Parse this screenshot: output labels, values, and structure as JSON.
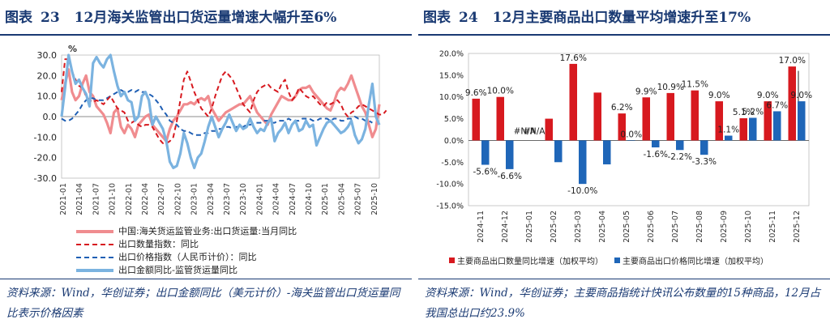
{
  "left": {
    "title_prefix": "图表",
    "title_number": "23",
    "title_text": "12月海关监管出口货运量增速大幅升至6%",
    "source": "资料来源：Wind，华创证券；出口金额同比（美元计价）-海关监管出口货运量同比表示价格因素",
    "colors": {
      "s1": "#f08c8f",
      "s2": "#d7191f",
      "s3": "#1f5fb4",
      "s4": "#7bb3e0"
    }
  },
  "right": {
    "title_prefix": "图表",
    "title_number": "24",
    "title_text": "12月主要商品出口数量平均增速升至17%",
    "source": "资料来源：Wind，华创证券；主要商品指统计快讯公布数量的15种商品，12月占我国总出口约23.9%",
    "colors": {
      "qty": "#d7191f",
      "price": "#1f66b8"
    }
  },
  "chart_data": [
    {
      "type": "line",
      "ylim": [
        -30,
        30
      ],
      "yticks": [
        "30.0",
        "20.0",
        "10.0",
        "0.0",
        "-10.0",
        "-20.0",
        "-30.0"
      ],
      "xtick_labels": [
        "2021-01",
        "2021-04",
        "2021-07",
        "2021-10",
        "2022-01",
        "2022-04",
        "2022-07",
        "2022-10",
        "2023-01",
        "2023-04",
        "2023-07",
        "2023-10",
        "2024-01",
        "2024-04",
        "2024-07",
        "2024-10",
        "2025-01",
        "2025-04",
        "2025-07",
        "2025-10"
      ],
      "annotation": "%",
      "series": [
        {
          "name": "中国:海关货运监管业务:出口货运量:当月同比",
          "values": [
            8,
            16,
            23,
            12,
            8,
            10,
            16,
            20,
            12,
            10,
            5,
            3,
            1,
            -3,
            -8,
            2,
            4,
            -5,
            -8,
            -4,
            -6,
            -10,
            -4,
            -2,
            0,
            1,
            -4,
            -6,
            -8,
            -10,
            -12,
            -6,
            -2,
            0,
            3,
            6,
            6,
            7,
            6,
            8,
            9,
            8,
            10,
            4,
            1,
            -2,
            0,
            2,
            3,
            4,
            5,
            6,
            6,
            8,
            10,
            6,
            2,
            0,
            -2,
            -4,
            1,
            4,
            7,
            10,
            9,
            8,
            8,
            10,
            13,
            14,
            14,
            15,
            12,
            10,
            8,
            6,
            4,
            3,
            7,
            12,
            14,
            13,
            16,
            20,
            15,
            10,
            5,
            2,
            -4,
            -10,
            -6,
            6
          ]
        },
        {
          "name": "出口数量指数：同比",
          "values": [
            12,
            28,
            28,
            22,
            18,
            15,
            14,
            10,
            8,
            7,
            8,
            7,
            6,
            8,
            10,
            7,
            4,
            3,
            2,
            -2,
            -3,
            -2,
            -4,
            -5,
            -4,
            -4,
            -5,
            -8,
            -11,
            -13,
            -13,
            -12,
            -10,
            -2,
            8,
            18,
            22,
            17,
            12,
            8,
            4,
            2,
            0,
            4,
            10,
            15,
            20,
            22,
            20,
            18,
            14,
            10,
            6,
            4,
            2,
            8,
            12,
            14,
            15,
            16,
            14,
            13,
            12,
            16,
            18,
            12,
            8,
            10,
            14,
            12,
            10,
            9,
            10,
            8,
            6,
            5,
            7,
            6,
            7,
            8,
            6,
            2,
            0,
            2,
            3,
            5,
            6,
            5,
            4,
            3,
            2,
            1,
            1,
            3
          ]
        },
        {
          "name": "出口价格指数（人民币计价）：同比",
          "values": [
            -1,
            -2,
            -2,
            -1,
            1,
            3,
            6,
            8,
            9,
            9,
            8,
            8,
            8,
            9,
            10,
            11,
            12,
            13,
            12,
            12,
            13,
            12,
            13,
            12,
            12,
            11,
            10,
            8,
            6,
            3,
            1,
            -2,
            -3,
            -4,
            -6,
            -7,
            -7,
            -8,
            -9,
            -9,
            -9,
            -8,
            -8,
            -7,
            -7,
            -6,
            -6,
            -5,
            -5,
            -6,
            -5,
            -5,
            -5,
            -4,
            -4,
            -3,
            -3,
            -3,
            -2,
            -2,
            -3,
            -3,
            -2,
            -2,
            -2,
            -1,
            -2,
            -2,
            -2,
            -1,
            -1,
            -1,
            -2,
            -2,
            -1,
            -1,
            -1,
            -2,
            -1,
            -1,
            -2,
            -2,
            -1,
            -1,
            0,
            -1,
            -1,
            -2,
            -2,
            -3
          ]
        },
        {
          "name": "出口金额同比-监管货运量同比",
          "values": [
            0,
            14,
            30,
            22,
            16,
            18,
            14,
            11,
            5,
            26,
            29,
            26,
            24,
            28,
            30,
            22,
            15,
            10,
            12,
            8,
            7,
            -2,
            0,
            10,
            12,
            8,
            -4,
            0,
            -3,
            -6,
            -12,
            -22,
            -25,
            -24,
            -18,
            -8,
            -13,
            -20,
            -25,
            -20,
            -18,
            -12,
            -5,
            0,
            -5,
            -10,
            -6,
            -3,
            1,
            -3,
            -7,
            -4,
            -6,
            -5,
            -1,
            -5,
            -8,
            -6,
            -7,
            -3,
            -1,
            -12,
            -8,
            -6,
            -3,
            -8,
            -4,
            -2,
            -7,
            -6,
            -2,
            -5,
            -4,
            -14,
            -10,
            -6,
            -3,
            -2,
            -4,
            -6,
            -8,
            -7,
            -5,
            -2,
            -9,
            -13,
            -11,
            -6,
            6,
            16,
            0,
            -4
          ]
        }
      ]
    },
    {
      "type": "bar",
      "ylim": [
        -15,
        20
      ],
      "yticks": [
        "20.0%",
        "15.0%",
        "10.0%",
        "5.0%",
        "0.0%",
        "-5.0%",
        "-10.0%",
        "-15.0%"
      ],
      "categories": [
        "2024-11",
        "2024-12",
        "2025-01",
        "2025-02",
        "2025-03",
        "2025-04",
        "2025-05",
        "2025-06",
        "2025-07",
        "2025-08",
        "2025-09",
        "2025-10",
        "2025-11",
        "2025-12"
      ],
      "series": [
        {
          "name": "主要商品出口数量同比增速（加权平均）",
          "values": [
            9.6,
            10.0,
            null,
            5.0,
            17.6,
            11.0,
            6.2,
            9.9,
            10.9,
            11.5,
            9.0,
            5.1,
            9.0,
            17.0
          ],
          "labels": [
            "9.6%",
            "10.0%",
            "#N/A",
            "",
            "17.6%",
            "",
            "6.2%",
            "9.9%",
            "10.9%",
            "11.5%",
            "9.0%",
            "5.1%",
            "9.0%",
            "17.0%"
          ]
        },
        {
          "name": "主要商品出口价格同比增速（加权平均）",
          "values": [
            -5.6,
            -6.6,
            null,
            -5.0,
            -10.0,
            -5.5,
            0.0,
            -1.6,
            -2.2,
            -3.3,
            1.1,
            5.2,
            6.7,
            9.0
          ],
          "labels": [
            "-5.6%",
            "-6.6%",
            "#N/A",
            "",
            "-10.0%",
            "",
            "0.0%",
            "-1.6%",
            "-2.2%",
            "-3.3%",
            "1.1%",
            "5.2%",
            "6.7%",
            "9.0%"
          ]
        }
      ]
    }
  ]
}
